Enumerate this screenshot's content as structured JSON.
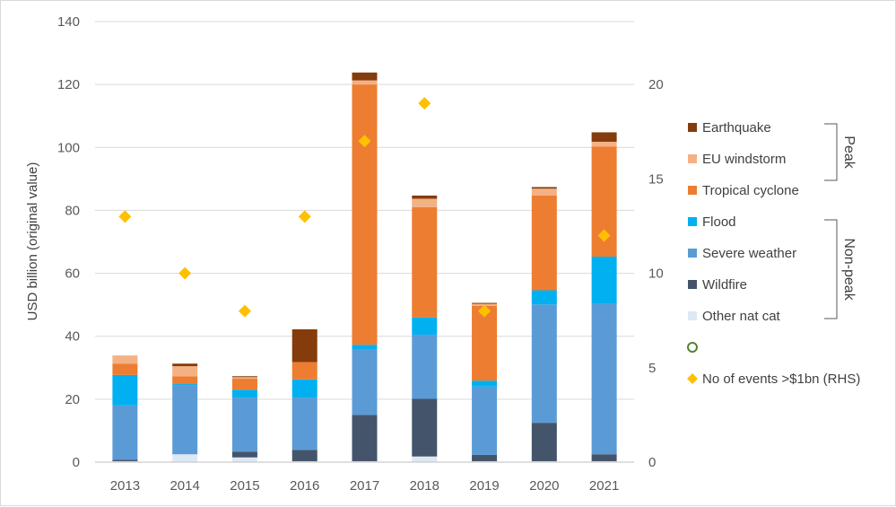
{
  "chart_data": {
    "type": "bar",
    "stacked": true,
    "title": "",
    "xlabel": "",
    "ylabel": "USD billion (original value)",
    "ylim": [
      0,
      140
    ],
    "yticks": [
      0,
      20,
      40,
      60,
      80,
      100,
      120,
      140
    ],
    "y2lim": [
      0,
      23.33
    ],
    "y2ticks": [
      0,
      5,
      10,
      15,
      20
    ],
    "categories": [
      "2013",
      "2014",
      "2015",
      "2016",
      "2017",
      "2018",
      "2019",
      "2020",
      "2021"
    ],
    "series": [
      {
        "name": "Other nat cat",
        "color": "#dde8f5",
        "values": [
          0.3,
          2.5,
          1.5,
          0.3,
          0.3,
          1.8,
          0.3,
          0.3,
          0.3
        ]
      },
      {
        "name": "Wildfire",
        "color": "#44546a",
        "values": [
          0.5,
          0,
          1.8,
          3.6,
          14.7,
          18.3,
          2.0,
          12.2,
          2.2
        ]
      },
      {
        "name": "Severe weather",
        "color": "#5b9bd5",
        "values": [
          17.2,
          21.8,
          17.2,
          16.6,
          20.8,
          20.4,
          21.7,
          37.6,
          47.8
        ]
      },
      {
        "name": "Flood",
        "color": "#00b0f0",
        "values": [
          9.7,
          0.5,
          2.5,
          5.8,
          1.5,
          5.5,
          1.9,
          4.5,
          15.0
        ]
      },
      {
        "name": "Tropical cyclone",
        "color": "#ed7d31",
        "values": [
          3.6,
          2.5,
          3.5,
          5.5,
          82.7,
          35.0,
          23.8,
          30.1,
          35.0
        ]
      },
      {
        "name": "EU windstorm",
        "color": "#f4b183",
        "values": [
          2.6,
          3.2,
          0.5,
          0,
          1.3,
          2.7,
          0.6,
          2.2,
          1.5
        ]
      },
      {
        "name": "Earthquake",
        "color": "#843c0c",
        "values": [
          0,
          0.8,
          0.3,
          10.4,
          2.5,
          1.0,
          0.3,
          0.5,
          3.0
        ]
      }
    ],
    "markers": {
      "name": "No of events >$1bn (RHS)",
      "color": "#ffc000",
      "axis": "right",
      "values": [
        13,
        10,
        8,
        13,
        17,
        19,
        8,
        null,
        12
      ]
    },
    "legend_placement": "right",
    "legend_order": [
      "Earthquake",
      "EU windstorm",
      "Tropical cyclone",
      "Flood",
      "Severe weather",
      "Wildfire",
      "Other nat cat"
    ],
    "legend_empty_marker_color": "#548235",
    "groups": [
      {
        "label": "Peak",
        "members": [
          "Earthquake",
          "EU windstorm",
          "Tropical cyclone"
        ]
      },
      {
        "label": "Non-peak",
        "members": [
          "Flood",
          "Severe weather",
          "Wildfire",
          "Other nat cat"
        ]
      }
    ],
    "grid": true
  }
}
